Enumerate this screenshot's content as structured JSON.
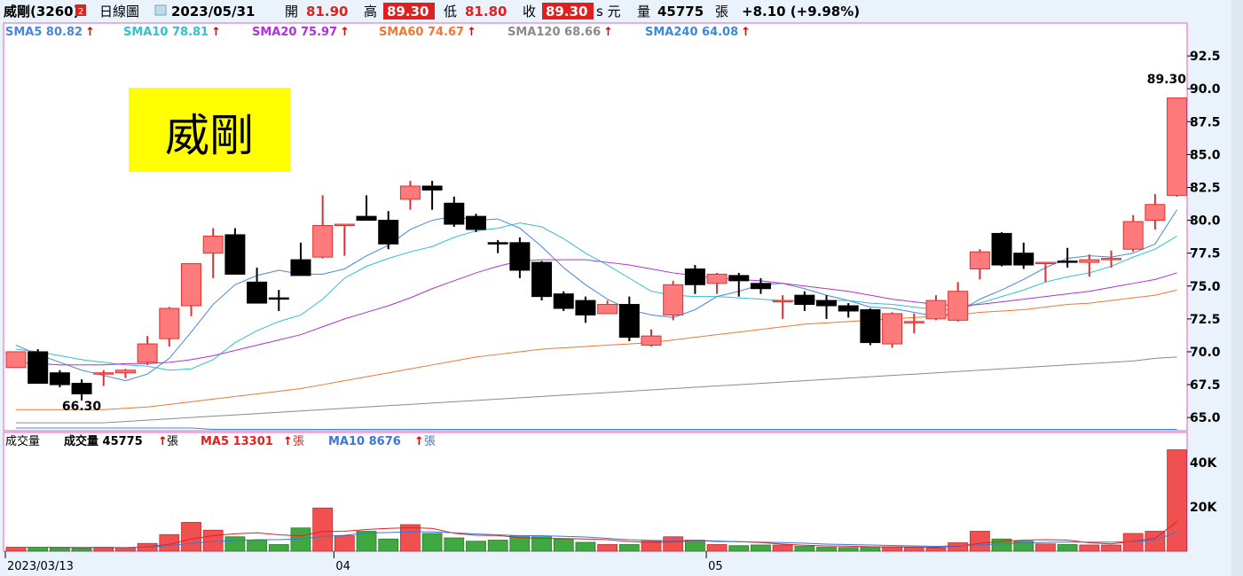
{
  "header": {
    "stock": "威剛(3260)",
    "stock_badge": "2",
    "period": "日線圖",
    "date": "2023/05/31",
    "open_label": "開",
    "open": "81.90",
    "high_label": "高",
    "high": "89.30",
    "low_label": "低",
    "low": "81.80",
    "close_label": "收",
    "close": "89.30",
    "unit_label": "s 元",
    "vol_label": "量",
    "volume": "45775",
    "vol_unit": "張",
    "change": "+8.10 (+9.98%)"
  },
  "sma_legend": [
    {
      "label": "SMA5 80.82",
      "color": "#4a86d8"
    },
    {
      "label": "SMA10 78.81",
      "color": "#30c0d0"
    },
    {
      "label": "SMA20 75.97",
      "color": "#b030d8"
    },
    {
      "label": "SMA60 74.67",
      "color": "#ee7733"
    },
    {
      "label": "SMA120 68.66",
      "color": "#8a8a8a"
    },
    {
      "label": "SMA240 64.08",
      "color": "#3a8ad8"
    }
  ],
  "title_box": "威剛",
  "annotations": {
    "high_point": "89.30",
    "low_point": "66.30"
  },
  "volume_legend": {
    "title": "成交量",
    "vol": "成交量 45775",
    "vol_unit": "張",
    "ma5": "MA5 13301",
    "ma5_unit": "張",
    "ma10": "MA10 8676",
    "ma10_unit": "張"
  },
  "colors": {
    "up": "#ff7b7b",
    "up_border": "#e03030",
    "down": "#000000",
    "vol_up": "#f05050",
    "vol_down": "#40a840",
    "arrow": "#dd0000"
  },
  "chart_data": {
    "type": "candlestick",
    "x_axis_labels": [
      {
        "text": "2023/03/13",
        "index": 0
      },
      {
        "text": "04",
        "index": 15
      },
      {
        "text": "05",
        "index": 32
      }
    ],
    "price_axis": {
      "ticks": [
        "92.5",
        "90.0",
        "87.5",
        "85.0",
        "82.5",
        "80.0",
        "77.5",
        "75.0",
        "72.5",
        "70.0",
        "67.5",
        "65.0"
      ],
      "ylim": [
        64.0,
        95.0
      ]
    },
    "volume_axis": {
      "ticks": [
        "40K",
        "20K"
      ],
      "ylim": [
        0,
        52000
      ]
    },
    "candles": [
      {
        "o": 68.8,
        "h": 70.0,
        "l": 68.8,
        "c": 70.0
      },
      {
        "o": 70.0,
        "h": 70.2,
        "l": 67.6,
        "c": 67.6
      },
      {
        "o": 68.4,
        "h": 68.6,
        "l": 67.3,
        "c": 67.5
      },
      {
        "o": 67.6,
        "h": 67.9,
        "l": 66.3,
        "c": 66.8
      },
      {
        "o": 68.3,
        "h": 68.6,
        "l": 67.4,
        "c": 68.4
      },
      {
        "o": 68.4,
        "h": 68.7,
        "l": 68.0,
        "c": 68.6
      },
      {
        "o": 69.2,
        "h": 71.2,
        "l": 69.0,
        "c": 70.6
      },
      {
        "o": 71.0,
        "h": 73.4,
        "l": 70.4,
        "c": 73.3
      },
      {
        "o": 73.5,
        "h": 76.6,
        "l": 72.7,
        "c": 76.7
      },
      {
        "o": 77.5,
        "h": 79.4,
        "l": 75.6,
        "c": 78.8
      },
      {
        "o": 78.9,
        "h": 79.4,
        "l": 75.9,
        "c": 75.9
      },
      {
        "o": 75.3,
        "h": 76.4,
        "l": 73.7,
        "c": 73.7
      },
      {
        "o": 74.1,
        "h": 74.7,
        "l": 73.1,
        "c": 74.0
      },
      {
        "o": 77.0,
        "h": 78.3,
        "l": 75.8,
        "c": 75.8
      },
      {
        "o": 77.2,
        "h": 81.9,
        "l": 77.1,
        "c": 79.6
      },
      {
        "o": 79.6,
        "h": 79.6,
        "l": 77.3,
        "c": 79.7
      },
      {
        "o": 80.3,
        "h": 81.9,
        "l": 80.0,
        "c": 80.0
      },
      {
        "o": 80.0,
        "h": 80.7,
        "l": 77.8,
        "c": 78.2
      },
      {
        "o": 81.6,
        "h": 83.0,
        "l": 80.8,
        "c": 82.6
      },
      {
        "o": 82.6,
        "h": 83.0,
        "l": 80.8,
        "c": 82.3
      },
      {
        "o": 81.3,
        "h": 81.8,
        "l": 79.5,
        "c": 79.7
      },
      {
        "o": 80.3,
        "h": 80.5,
        "l": 79.1,
        "c": 79.3
      },
      {
        "o": 78.3,
        "h": 78.5,
        "l": 77.5,
        "c": 78.2
      },
      {
        "o": 78.3,
        "h": 78.7,
        "l": 75.6,
        "c": 76.2
      },
      {
        "o": 76.8,
        "h": 76.9,
        "l": 73.9,
        "c": 74.2
      },
      {
        "o": 74.4,
        "h": 74.6,
        "l": 73.1,
        "c": 73.3
      },
      {
        "o": 73.9,
        "h": 74.2,
        "l": 72.2,
        "c": 72.8
      },
      {
        "o": 72.9,
        "h": 73.9,
        "l": 72.9,
        "c": 73.6
      },
      {
        "o": 73.6,
        "h": 74.2,
        "l": 70.8,
        "c": 71.1
      },
      {
        "o": 70.5,
        "h": 71.7,
        "l": 70.4,
        "c": 71.2
      },
      {
        "o": 72.8,
        "h": 75.4,
        "l": 72.4,
        "c": 75.1
      },
      {
        "o": 76.3,
        "h": 76.6,
        "l": 74.4,
        "c": 75.1
      },
      {
        "o": 75.2,
        "h": 76.0,
        "l": 74.4,
        "c": 75.9
      },
      {
        "o": 75.8,
        "h": 76.0,
        "l": 74.2,
        "c": 75.4
      },
      {
        "o": 75.2,
        "h": 75.6,
        "l": 74.4,
        "c": 74.8
      },
      {
        "o": 73.9,
        "h": 74.3,
        "l": 72.5,
        "c": 73.9
      },
      {
        "o": 74.3,
        "h": 74.6,
        "l": 73.1,
        "c": 73.6
      },
      {
        "o": 73.9,
        "h": 74.3,
        "l": 72.5,
        "c": 73.5
      },
      {
        "o": 73.5,
        "h": 73.7,
        "l": 72.6,
        "c": 73.1
      },
      {
        "o": 73.2,
        "h": 73.3,
        "l": 70.5,
        "c": 70.7
      },
      {
        "o": 70.6,
        "h": 73.0,
        "l": 70.3,
        "c": 72.9
      },
      {
        "o": 72.3,
        "h": 72.9,
        "l": 71.4,
        "c": 72.3
      },
      {
        "o": 72.5,
        "h": 74.3,
        "l": 72.4,
        "c": 73.9
      },
      {
        "o": 72.4,
        "h": 75.3,
        "l": 72.3,
        "c": 74.6
      },
      {
        "o": 76.3,
        "h": 77.8,
        "l": 75.5,
        "c": 77.6
      },
      {
        "o": 79.0,
        "h": 79.1,
        "l": 76.5,
        "c": 76.6
      },
      {
        "o": 77.5,
        "h": 78.3,
        "l": 76.3,
        "c": 76.6
      },
      {
        "o": 76.7,
        "h": 76.8,
        "l": 75.3,
        "c": 76.8
      },
      {
        "o": 76.9,
        "h": 77.9,
        "l": 76.4,
        "c": 76.8
      },
      {
        "o": 76.8,
        "h": 77.4,
        "l": 75.7,
        "c": 77.0
      },
      {
        "o": 77.0,
        "h": 77.7,
        "l": 76.4,
        "c": 77.1
      },
      {
        "o": 77.8,
        "h": 80.4,
        "l": 77.6,
        "c": 79.9
      },
      {
        "o": 80.0,
        "h": 82.0,
        "l": 79.3,
        "c": 81.2
      },
      {
        "o": 81.9,
        "h": 89.3,
        "l": 81.8,
        "c": 89.3
      }
    ],
    "volumes": [
      1800,
      1800,
      1500,
      1300,
      1800,
      1500,
      3500,
      7500,
      13000,
      9500,
      6500,
      5000,
      3000,
      10500,
      19500,
      7000,
      9000,
      5500,
      12000,
      8000,
      6000,
      4500,
      5000,
      7000,
      6500,
      5500,
      4000,
      3000,
      3000,
      4500,
      6500,
      5000,
      3000,
      2500,
      2800,
      2800,
      2200,
      1800,
      1700,
      2000,
      2000,
      1800,
      1500,
      3800,
      9000,
      5500,
      4500,
      3300,
      3000,
      2800,
      2800,
      8000,
      9000,
      45775
    ],
    "sma": {
      "SMA5": [
        70.5,
        69.8,
        69.2,
        68.6,
        68.2,
        67.8,
        68.3,
        69.5,
        71.5,
        73.6,
        75.1,
        75.8,
        76.2,
        75.9,
        75.9,
        76.3,
        77.3,
        78.1,
        79.3,
        80.0,
        80.3,
        80.0,
        80.1,
        79.4,
        78.0,
        76.4,
        75.1,
        74.0,
        73.2,
        72.8,
        72.6,
        73.2,
        74.2,
        74.6,
        75.1,
        75.2,
        74.8,
        74.3,
        73.9,
        73.4,
        73.3,
        73.0,
        72.7,
        73.0,
        74.0,
        74.7,
        75.5,
        76.4,
        77.1,
        77.3,
        77.2,
        77.5,
        78.2,
        80.8
      ],
      "SMA10": [
        70.2,
        70.0,
        69.7,
        69.4,
        69.2,
        69.0,
        68.9,
        68.6,
        68.7,
        69.4,
        70.7,
        71.6,
        72.3,
        72.8,
        74.0,
        75.6,
        76.5,
        77.1,
        77.6,
        78.0,
        78.7,
        79.2,
        79.4,
        79.8,
        79.5,
        78.6,
        77.5,
        76.6,
        75.6,
        74.6,
        74.3,
        74.2,
        74.2,
        74.1,
        74.0,
        73.9,
        73.9,
        73.9,
        73.9,
        73.7,
        73.6,
        73.4,
        73.2,
        73.2,
        73.7,
        74.2,
        74.7,
        75.3,
        75.7,
        76.0,
        76.5,
        77.2,
        77.8,
        78.8
      ],
      "SMA20": [
        69.2,
        69.1,
        69.0,
        69.0,
        69.0,
        69.1,
        69.1,
        69.2,
        69.4,
        69.7,
        70.1,
        70.5,
        70.9,
        71.3,
        71.9,
        72.5,
        73.0,
        73.5,
        74.1,
        74.8,
        75.4,
        76.0,
        76.5,
        76.9,
        77.0,
        77.0,
        77.0,
        76.8,
        76.6,
        76.3,
        76.0,
        75.8,
        75.6,
        75.5,
        75.4,
        75.2,
        75.0,
        74.8,
        74.6,
        74.3,
        74.0,
        73.8,
        73.6,
        73.5,
        73.6,
        73.8,
        74.0,
        74.2,
        74.4,
        74.6,
        74.9,
        75.2,
        75.5,
        76.0
      ],
      "SMA60": [
        65.6,
        65.6,
        65.6,
        65.6,
        65.6,
        65.7,
        65.8,
        66.0,
        66.2,
        66.4,
        66.6,
        66.8,
        67.0,
        67.2,
        67.5,
        67.8,
        68.1,
        68.4,
        68.7,
        69.0,
        69.3,
        69.6,
        69.8,
        70.0,
        70.2,
        70.3,
        70.4,
        70.5,
        70.6,
        70.7,
        70.9,
        71.1,
        71.3,
        71.5,
        71.7,
        71.9,
        72.1,
        72.2,
        72.3,
        72.4,
        72.5,
        72.6,
        72.7,
        72.8,
        73.0,
        73.1,
        73.2,
        73.4,
        73.6,
        73.7,
        73.9,
        74.1,
        74.3,
        74.7
      ],
      "SMA120": [
        64.6,
        64.6,
        64.6,
        64.6,
        64.6,
        64.7,
        64.8,
        64.9,
        65.0,
        65.1,
        65.2,
        65.3,
        65.4,
        65.5,
        65.6,
        65.7,
        65.8,
        65.9,
        66.0,
        66.1,
        66.2,
        66.3,
        66.4,
        66.5,
        66.6,
        66.7,
        66.8,
        66.9,
        67.0,
        67.1,
        67.2,
        67.3,
        67.4,
        67.5,
        67.6,
        67.7,
        67.8,
        67.9,
        68.0,
        68.1,
        68.2,
        68.3,
        68.4,
        68.5,
        68.6,
        68.7,
        68.8,
        68.9,
        69.0,
        69.1,
        69.2,
        69.3,
        69.5,
        69.6
      ],
      "SMA240": [
        64.2,
        64.2,
        64.2,
        64.2,
        64.2,
        64.2,
        64.2,
        64.2,
        64.2,
        64.1,
        64.1,
        64.1,
        64.1,
        64.1,
        64.1,
        64.1,
        64.1,
        64.1,
        64.1,
        64.1,
        64.1,
        64.1,
        64.1,
        64.1,
        64.1,
        64.1,
        64.1,
        64.1,
        64.1,
        64.1,
        64.1,
        64.1,
        64.1,
        64.1,
        64.1,
        64.1,
        64.1,
        64.1,
        64.1,
        64.1,
        64.1,
        64.1,
        64.1,
        64.1,
        64.1,
        64.1,
        64.1,
        64.1,
        64.1,
        64.1,
        64.1,
        64.1,
        64.1,
        64.1
      ]
    },
    "volume_ma": {
      "MA5": [
        1800,
        1800,
        1700,
        1600,
        1640,
        1580,
        1980,
        3120,
        5520,
        7000,
        7860,
        8300,
        7400,
        6900,
        8900,
        9000,
        9800,
        10300,
        10600,
        10300,
        8100,
        7200,
        7100,
        6100,
        5800,
        5700,
        5500,
        5200,
        4400,
        4000,
        4200,
        4800,
        4400,
        4300,
        3900,
        3200,
        2700,
        2400,
        2300,
        2000,
        1900,
        1900,
        1800,
        2200,
        3600,
        4400,
        5000,
        5200,
        5000,
        3800,
        3300,
        4500,
        5800,
        13301
      ],
      "MA10": [
        1800,
        1800,
        1750,
        1700,
        1700,
        1650,
        1800,
        2500,
        3600,
        4300,
        4800,
        5200,
        5200,
        5600,
        6600,
        7200,
        8200,
        8400,
        8800,
        8700,
        8300,
        7800,
        7400,
        7000,
        7000,
        6700,
        6400,
        5800,
        5200,
        4900,
        4700,
        4900,
        4600,
        4300,
        4100,
        3900,
        3600,
        3200,
        3000,
        2800,
        2600,
        2400,
        2200,
        2400,
        2900,
        3300,
        3700,
        4000,
        4100,
        4100,
        4100,
        4300,
        4900,
        8676
      ]
    }
  }
}
